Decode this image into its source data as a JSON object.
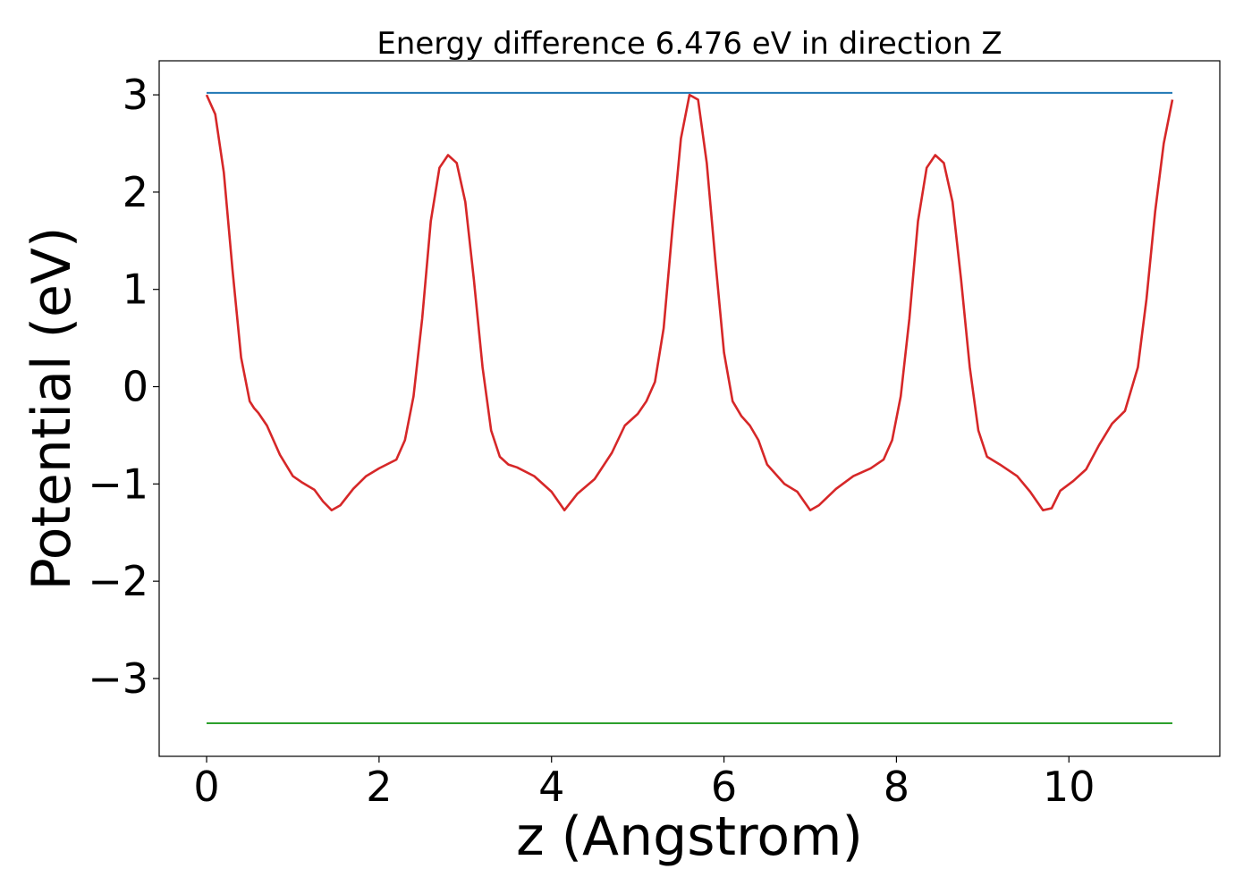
{
  "chart_data": {
    "type": "line",
    "title": "Energy difference 6.476 eV in direction Z",
    "xlabel": "z (Angstrom)",
    "ylabel": "Potential (eV)",
    "xlim": [
      -0.55,
      11.75
    ],
    "ylim": [
      -3.8,
      3.35
    ],
    "xticks": [
      0,
      2,
      4,
      6,
      8,
      10
    ],
    "xtick_labels": [
      "0",
      "2",
      "4",
      "6",
      "8",
      "10"
    ],
    "yticks": [
      -3,
      -2,
      -1,
      0,
      1,
      2,
      3
    ],
    "ytick_labels": [
      "−3",
      "−2",
      "−1",
      "0",
      "1",
      "2",
      "3"
    ],
    "grid": false,
    "series": [
      {
        "color": "#d62728",
        "x": [
          0.0,
          0.1,
          0.2,
          0.3,
          0.4,
          0.5,
          0.55,
          0.6,
          0.7,
          0.85,
          1.0,
          1.1,
          1.25,
          1.35,
          1.45,
          1.55,
          1.7,
          1.85,
          2.0,
          2.2,
          2.3,
          2.4,
          2.5,
          2.6,
          2.7,
          2.8,
          2.9,
          3.0,
          3.1,
          3.2,
          3.3,
          3.4,
          3.5,
          3.6,
          3.8,
          4.0,
          4.15,
          4.3,
          4.5,
          4.7,
          4.85,
          5.0,
          5.1,
          5.2,
          5.3,
          5.4,
          5.5,
          5.6,
          5.7,
          5.8,
          5.9,
          6.0,
          6.1,
          6.2,
          6.3,
          6.4,
          6.5,
          6.7,
          6.85,
          7.0,
          7.1,
          7.3,
          7.5,
          7.7,
          7.85,
          7.95,
          8.05,
          8.15,
          8.25,
          8.35,
          8.45,
          8.55,
          8.65,
          8.75,
          8.85,
          8.95,
          9.05,
          9.2,
          9.4,
          9.55,
          9.7,
          9.8,
          9.9,
          10.05,
          10.2,
          10.35,
          10.5,
          10.65,
          10.8,
          10.9,
          11.0,
          11.1,
          11.2
        ],
        "values": [
          3.0,
          2.8,
          2.2,
          1.2,
          0.3,
          -0.15,
          -0.22,
          -0.27,
          -0.4,
          -0.7,
          -0.92,
          -0.98,
          -1.06,
          -1.18,
          -1.27,
          -1.22,
          -1.05,
          -0.92,
          -0.84,
          -0.75,
          -0.55,
          -0.1,
          0.7,
          1.7,
          2.25,
          2.38,
          2.3,
          1.9,
          1.1,
          0.2,
          -0.45,
          -0.72,
          -0.8,
          -0.83,
          -0.92,
          -1.08,
          -1.27,
          -1.1,
          -0.95,
          -0.68,
          -0.4,
          -0.28,
          -0.15,
          0.05,
          0.6,
          1.6,
          2.55,
          3.0,
          2.95,
          2.3,
          1.3,
          0.35,
          -0.15,
          -0.3,
          -0.4,
          -0.55,
          -0.8,
          -1.0,
          -1.08,
          -1.27,
          -1.22,
          -1.05,
          -0.92,
          -0.84,
          -0.75,
          -0.55,
          -0.1,
          0.7,
          1.7,
          2.25,
          2.38,
          2.3,
          1.9,
          1.1,
          0.2,
          -0.45,
          -0.72,
          -0.8,
          -0.92,
          -1.08,
          -1.27,
          -1.25,
          -1.07,
          -0.97,
          -0.85,
          -0.6,
          -0.38,
          -0.25,
          0.2,
          0.9,
          1.8,
          2.5,
          2.95
        ]
      },
      {
        "color": "#1f77b4",
        "x": [
          0.0,
          11.2
        ],
        "values": [
          3.02,
          3.02
        ]
      },
      {
        "color": "#2ca02c",
        "x": [
          0.0,
          11.2
        ],
        "values": [
          -3.46,
          -3.46
        ]
      }
    ]
  }
}
